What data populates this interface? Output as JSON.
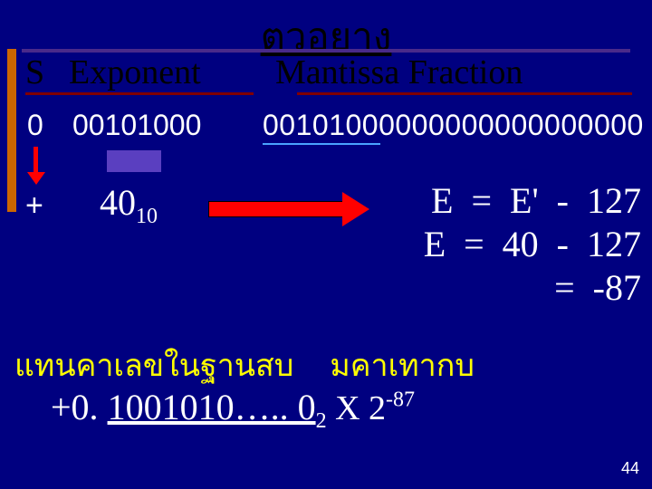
{
  "title": "ตวอยาง",
  "headers": {
    "s": "S",
    "exp": "Exponent",
    "man": "Mantissa  Fraction"
  },
  "data": {
    "s": "0",
    "exp": "00101000",
    "man": "00101000000000000000000"
  },
  "derived": {
    "plus": "+",
    "value": "40",
    "base": "10"
  },
  "equations": {
    "l1": "E  =  E'  -  127",
    "l2": "E  =  40  -  127",
    "l3": "=  -87"
  },
  "thai": {
    "left": "แทนคาเลขในฐานสบ",
    "right": "มคาเทากบ"
  },
  "bottom": {
    "sign": "+0. ",
    "mant": "1001010….. 0",
    "radix": "2",
    "mult": "  X  2",
    "exp": "-87"
  },
  "page": "44",
  "colors": {
    "bg": "#000080",
    "accent": "#cc6600",
    "header_underline": "#800000",
    "arrow": "#ff0000",
    "tab": "#5a3fc0",
    "man_underline": "#4aa3ff",
    "thai": "#ffff00",
    "text": "#ffffff",
    "header_text": "#000000"
  }
}
